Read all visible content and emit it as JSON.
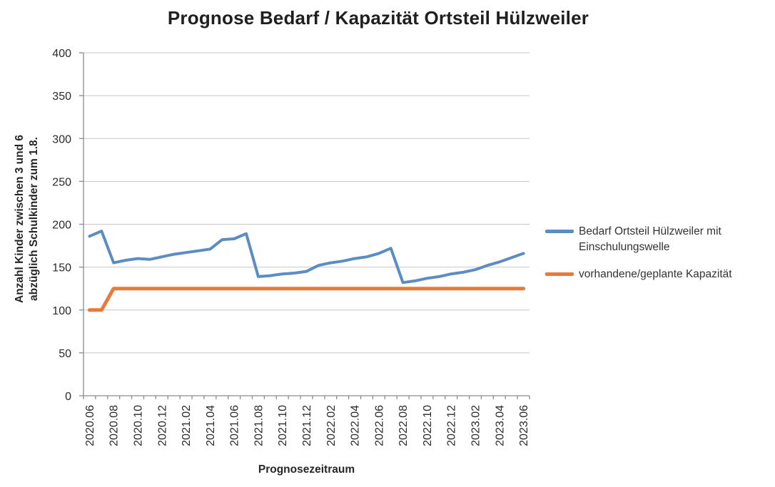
{
  "chart_data": {
    "type": "line",
    "title": "Prognose Bedarf / Kapazität Ortsteil Hülzweiler",
    "xlabel": "Prognosezeitraum",
    "ylabel": "Anzahl Kinder zwischen 3 und 6 abzüglich Schulkinder zum 1.8.",
    "ylabel_lines": [
      "Anzahl Kinder zwischen 3 und 6",
      "abzüglich Schulkinder zum 1.8."
    ],
    "ylim": [
      0,
      400
    ],
    "ytick_step": 50,
    "xtick_label_step": 2,
    "grid": true,
    "legend_position": "right",
    "axis_color": "#8C8C8C",
    "gridline_color": "#C7C7C7",
    "categories": [
      "2020.06",
      "2020.07",
      "2020.08",
      "2020.09",
      "2020.10",
      "2020.11",
      "2020.12",
      "2021.01",
      "2021.02",
      "2021.03",
      "2021.04",
      "2021.05",
      "2021.06",
      "2021.07",
      "2021.08",
      "2021.09",
      "2021.10",
      "2021.11",
      "2021.12",
      "2022.01",
      "2022.02",
      "2022.03",
      "2022.04",
      "2022.05",
      "2022.06",
      "2022.07",
      "2022.08",
      "2022.09",
      "2022.10",
      "2022.11",
      "2022.12",
      "2023.01",
      "2023.02",
      "2023.03",
      "2023.04",
      "2023.05",
      "2023.06"
    ],
    "series": [
      {
        "name": "Bedarf Ortsteil Hülzweiler mit Einschulungswelle",
        "color": "#5B8DC5",
        "stroke_width": 4,
        "values": [
          186,
          192,
          155,
          158,
          160,
          159,
          162,
          165,
          167,
          169,
          171,
          182,
          183,
          189,
          139,
          140,
          142,
          143,
          145,
          152,
          155,
          157,
          160,
          162,
          166,
          172,
          132,
          134,
          137,
          139,
          142,
          144,
          147,
          152,
          156,
          161,
          166
        ]
      },
      {
        "name": "vorhandene/geplante Kapazität",
        "color": "#E8793A",
        "stroke_width": 5,
        "values": [
          100,
          100,
          125,
          125,
          125,
          125,
          125,
          125,
          125,
          125,
          125,
          125,
          125,
          125,
          125,
          125,
          125,
          125,
          125,
          125,
          125,
          125,
          125,
          125,
          125,
          125,
          125,
          125,
          125,
          125,
          125,
          125,
          125,
          125,
          125,
          125,
          125
        ]
      }
    ]
  }
}
